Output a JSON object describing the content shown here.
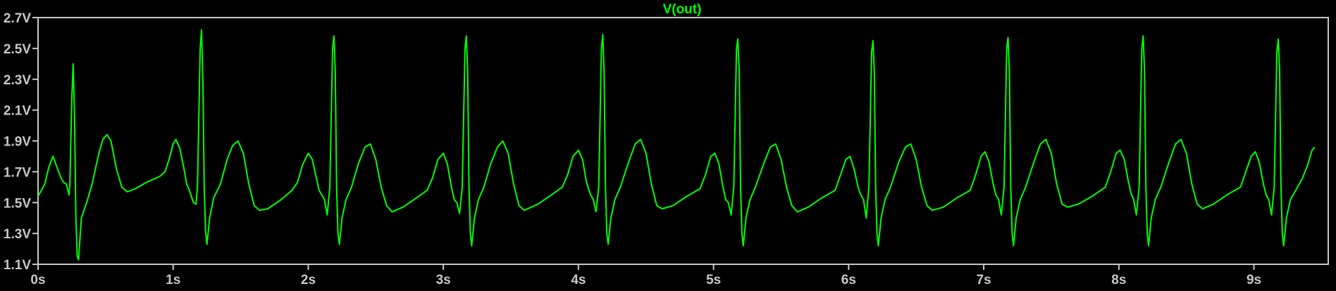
{
  "chart_data": {
    "type": "line",
    "title": "",
    "xlabel": "",
    "ylabel": "",
    "background": "#000000",
    "axis_color": "#c8c8c8",
    "grid": false,
    "xlim": [
      0,
      9.55
    ],
    "ylim": [
      1.1,
      2.7
    ],
    "x_ticks": [
      {
        "value": 0,
        "label": "0s"
      },
      {
        "value": 1,
        "label": "1s"
      },
      {
        "value": 2,
        "label": "2s"
      },
      {
        "value": 3,
        "label": "3s"
      },
      {
        "value": 4,
        "label": "4s"
      },
      {
        "value": 5,
        "label": "5s"
      },
      {
        "value": 6,
        "label": "6s"
      },
      {
        "value": 7,
        "label": "7s"
      },
      {
        "value": 8,
        "label": "8s"
      },
      {
        "value": 9,
        "label": "9s"
      }
    ],
    "y_ticks": [
      {
        "value": 1.1,
        "label": "1.1V"
      },
      {
        "value": 1.3,
        "label": "1.3V"
      },
      {
        "value": 1.5,
        "label": "1.5V"
      },
      {
        "value": 1.7,
        "label": "1.7V"
      },
      {
        "value": 1.9,
        "label": "1.9V"
      },
      {
        "value": 2.1,
        "label": "2.1V"
      },
      {
        "value": 2.3,
        "label": "2.3V"
      },
      {
        "value": 2.5,
        "label": "2.5V"
      },
      {
        "value": 2.7,
        "label": "2.7V"
      }
    ],
    "series": [
      {
        "name": "V(out)",
        "color": "#00ff00",
        "points": [
          [
            0.0,
            1.54
          ],
          [
            0.05,
            1.62
          ],
          [
            0.08,
            1.73
          ],
          [
            0.11,
            1.8
          ],
          [
            0.14,
            1.73
          ],
          [
            0.17,
            1.66
          ],
          [
            0.19,
            1.63
          ],
          [
            0.21,
            1.62
          ],
          [
            0.22,
            1.58
          ],
          [
            0.23,
            1.55
          ],
          [
            0.235,
            1.62
          ],
          [
            0.25,
            2.17
          ],
          [
            0.26,
            2.4
          ],
          [
            0.27,
            2.05
          ],
          [
            0.28,
            1.4
          ],
          [
            0.29,
            1.15
          ],
          [
            0.3,
            1.13
          ],
          [
            0.32,
            1.4
          ],
          [
            0.36,
            1.5
          ],
          [
            0.4,
            1.62
          ],
          [
            0.45,
            1.82
          ],
          [
            0.48,
            1.91
          ],
          [
            0.51,
            1.94
          ],
          [
            0.54,
            1.9
          ],
          [
            0.58,
            1.72
          ],
          [
            0.62,
            1.6
          ],
          [
            0.66,
            1.57
          ],
          [
            0.72,
            1.59
          ],
          [
            0.8,
            1.63
          ],
          [
            0.9,
            1.67
          ],
          [
            0.94,
            1.7
          ],
          [
            0.97,
            1.78
          ],
          [
            1.0,
            1.88
          ],
          [
            1.02,
            1.91
          ],
          [
            1.05,
            1.85
          ],
          [
            1.08,
            1.72
          ],
          [
            1.1,
            1.62
          ],
          [
            1.12,
            1.58
          ],
          [
            1.15,
            1.5
          ],
          [
            1.17,
            1.49
          ],
          [
            1.18,
            1.6
          ],
          [
            1.2,
            2.5
          ],
          [
            1.21,
            2.62
          ],
          [
            1.22,
            2.3
          ],
          [
            1.23,
            1.6
          ],
          [
            1.24,
            1.32
          ],
          [
            1.25,
            1.23
          ],
          [
            1.27,
            1.4
          ],
          [
            1.3,
            1.53
          ],
          [
            1.35,
            1.62
          ],
          [
            1.4,
            1.78
          ],
          [
            1.44,
            1.87
          ],
          [
            1.48,
            1.9
          ],
          [
            1.52,
            1.82
          ],
          [
            1.56,
            1.62
          ],
          [
            1.6,
            1.48
          ],
          [
            1.64,
            1.45
          ],
          [
            1.7,
            1.46
          ],
          [
            1.8,
            1.52
          ],
          [
            1.88,
            1.58
          ],
          [
            1.92,
            1.63
          ],
          [
            1.96,
            1.75
          ],
          [
            2.0,
            1.82
          ],
          [
            2.03,
            1.78
          ],
          [
            2.06,
            1.66
          ],
          [
            2.08,
            1.58
          ],
          [
            2.1,
            1.55
          ],
          [
            2.12,
            1.52
          ],
          [
            2.14,
            1.42
          ],
          [
            2.16,
            1.6
          ],
          [
            2.18,
            2.5
          ],
          [
            2.19,
            2.58
          ],
          [
            2.2,
            2.35
          ],
          [
            2.21,
            1.6
          ],
          [
            2.22,
            1.3
          ],
          [
            2.23,
            1.23
          ],
          [
            2.25,
            1.4
          ],
          [
            2.28,
            1.52
          ],
          [
            2.32,
            1.6
          ],
          [
            2.37,
            1.75
          ],
          [
            2.42,
            1.86
          ],
          [
            2.46,
            1.88
          ],
          [
            2.5,
            1.78
          ],
          [
            2.54,
            1.6
          ],
          [
            2.58,
            1.48
          ],
          [
            2.62,
            1.44
          ],
          [
            2.7,
            1.47
          ],
          [
            2.8,
            1.53
          ],
          [
            2.88,
            1.58
          ],
          [
            2.92,
            1.66
          ],
          [
            2.96,
            1.78
          ],
          [
            3.0,
            1.82
          ],
          [
            3.03,
            1.75
          ],
          [
            3.06,
            1.6
          ],
          [
            3.08,
            1.52
          ],
          [
            3.1,
            1.5
          ],
          [
            3.12,
            1.43
          ],
          [
            3.14,
            1.6
          ],
          [
            3.16,
            2.5
          ],
          [
            3.17,
            2.58
          ],
          [
            3.18,
            2.35
          ],
          [
            3.19,
            1.6
          ],
          [
            3.2,
            1.3
          ],
          [
            3.21,
            1.22
          ],
          [
            3.23,
            1.4
          ],
          [
            3.26,
            1.52
          ],
          [
            3.3,
            1.6
          ],
          [
            3.35,
            1.75
          ],
          [
            3.4,
            1.86
          ],
          [
            3.44,
            1.9
          ],
          [
            3.48,
            1.82
          ],
          [
            3.52,
            1.62
          ],
          [
            3.56,
            1.48
          ],
          [
            3.6,
            1.45
          ],
          [
            3.7,
            1.49
          ],
          [
            3.8,
            1.55
          ],
          [
            3.88,
            1.6
          ],
          [
            3.92,
            1.68
          ],
          [
            3.96,
            1.8
          ],
          [
            4.0,
            1.84
          ],
          [
            4.03,
            1.78
          ],
          [
            4.06,
            1.63
          ],
          [
            4.09,
            1.55
          ],
          [
            4.11,
            1.52
          ],
          [
            4.13,
            1.44
          ],
          [
            4.15,
            1.6
          ],
          [
            4.17,
            2.5
          ],
          [
            4.18,
            2.59
          ],
          [
            4.19,
            2.35
          ],
          [
            4.2,
            1.6
          ],
          [
            4.21,
            1.3
          ],
          [
            4.22,
            1.23
          ],
          [
            4.24,
            1.4
          ],
          [
            4.27,
            1.52
          ],
          [
            4.31,
            1.6
          ],
          [
            4.37,
            1.76
          ],
          [
            4.42,
            1.88
          ],
          [
            4.46,
            1.91
          ],
          [
            4.5,
            1.82
          ],
          [
            4.54,
            1.62
          ],
          [
            4.58,
            1.48
          ],
          [
            4.62,
            1.46
          ],
          [
            4.7,
            1.48
          ],
          [
            4.8,
            1.54
          ],
          [
            4.9,
            1.59
          ],
          [
            4.94,
            1.68
          ],
          [
            4.98,
            1.8
          ],
          [
            5.01,
            1.82
          ],
          [
            5.04,
            1.75
          ],
          [
            5.07,
            1.6
          ],
          [
            5.09,
            1.52
          ],
          [
            5.11,
            1.5
          ],
          [
            5.13,
            1.42
          ],
          [
            5.15,
            1.6
          ],
          [
            5.17,
            2.5
          ],
          [
            5.18,
            2.56
          ],
          [
            5.19,
            2.35
          ],
          [
            5.2,
            1.6
          ],
          [
            5.21,
            1.3
          ],
          [
            5.22,
            1.22
          ],
          [
            5.24,
            1.4
          ],
          [
            5.27,
            1.52
          ],
          [
            5.31,
            1.6
          ],
          [
            5.37,
            1.75
          ],
          [
            5.42,
            1.86
          ],
          [
            5.46,
            1.88
          ],
          [
            5.5,
            1.78
          ],
          [
            5.54,
            1.6
          ],
          [
            5.58,
            1.48
          ],
          [
            5.62,
            1.44
          ],
          [
            5.7,
            1.47
          ],
          [
            5.8,
            1.53
          ],
          [
            5.9,
            1.58
          ],
          [
            5.94,
            1.68
          ],
          [
            5.98,
            1.78
          ],
          [
            6.01,
            1.8
          ],
          [
            6.04,
            1.72
          ],
          [
            6.07,
            1.6
          ],
          [
            6.09,
            1.55
          ],
          [
            6.11,
            1.52
          ],
          [
            6.13,
            1.4
          ],
          [
            6.15,
            1.6
          ],
          [
            6.17,
            2.48
          ],
          [
            6.18,
            2.55
          ],
          [
            6.19,
            2.35
          ],
          [
            6.2,
            1.6
          ],
          [
            6.21,
            1.3
          ],
          [
            6.22,
            1.22
          ],
          [
            6.24,
            1.4
          ],
          [
            6.27,
            1.52
          ],
          [
            6.31,
            1.6
          ],
          [
            6.37,
            1.76
          ],
          [
            6.42,
            1.86
          ],
          [
            6.46,
            1.88
          ],
          [
            6.5,
            1.78
          ],
          [
            6.54,
            1.6
          ],
          [
            6.58,
            1.48
          ],
          [
            6.62,
            1.45
          ],
          [
            6.7,
            1.47
          ],
          [
            6.8,
            1.53
          ],
          [
            6.9,
            1.58
          ],
          [
            6.94,
            1.68
          ],
          [
            6.98,
            1.8
          ],
          [
            7.01,
            1.83
          ],
          [
            7.04,
            1.76
          ],
          [
            7.07,
            1.62
          ],
          [
            7.09,
            1.55
          ],
          [
            7.11,
            1.52
          ],
          [
            7.13,
            1.42
          ],
          [
            7.15,
            1.6
          ],
          [
            7.17,
            2.5
          ],
          [
            7.18,
            2.57
          ],
          [
            7.19,
            2.35
          ],
          [
            7.2,
            1.6
          ],
          [
            7.21,
            1.3
          ],
          [
            7.22,
            1.22
          ],
          [
            7.24,
            1.4
          ],
          [
            7.27,
            1.52
          ],
          [
            7.31,
            1.6
          ],
          [
            7.37,
            1.76
          ],
          [
            7.42,
            1.88
          ],
          [
            7.46,
            1.91
          ],
          [
            7.5,
            1.82
          ],
          [
            7.54,
            1.62
          ],
          [
            7.58,
            1.49
          ],
          [
            7.62,
            1.47
          ],
          [
            7.7,
            1.49
          ],
          [
            7.8,
            1.54
          ],
          [
            7.9,
            1.6
          ],
          [
            7.94,
            1.7
          ],
          [
            7.98,
            1.82
          ],
          [
            8.01,
            1.84
          ],
          [
            8.04,
            1.78
          ],
          [
            8.07,
            1.64
          ],
          [
            8.09,
            1.56
          ],
          [
            8.11,
            1.52
          ],
          [
            8.13,
            1.42
          ],
          [
            8.15,
            1.6
          ],
          [
            8.17,
            2.5
          ],
          [
            8.18,
            2.58
          ],
          [
            8.19,
            2.35
          ],
          [
            8.2,
            1.6
          ],
          [
            8.21,
            1.3
          ],
          [
            8.22,
            1.22
          ],
          [
            8.24,
            1.4
          ],
          [
            8.27,
            1.52
          ],
          [
            8.31,
            1.6
          ],
          [
            8.37,
            1.76
          ],
          [
            8.42,
            1.88
          ],
          [
            8.46,
            1.91
          ],
          [
            8.5,
            1.82
          ],
          [
            8.54,
            1.62
          ],
          [
            8.58,
            1.49
          ],
          [
            8.62,
            1.46
          ],
          [
            8.7,
            1.49
          ],
          [
            8.8,
            1.55
          ],
          [
            8.9,
            1.6
          ],
          [
            8.94,
            1.7
          ],
          [
            8.98,
            1.8
          ],
          [
            9.01,
            1.83
          ],
          [
            9.04,
            1.76
          ],
          [
            9.07,
            1.62
          ],
          [
            9.09,
            1.55
          ],
          [
            9.11,
            1.52
          ],
          [
            9.13,
            1.42
          ],
          [
            9.15,
            1.6
          ],
          [
            9.17,
            2.48
          ],
          [
            9.18,
            2.56
          ],
          [
            9.19,
            2.35
          ],
          [
            9.2,
            1.6
          ],
          [
            9.21,
            1.3
          ],
          [
            9.22,
            1.22
          ],
          [
            9.24,
            1.4
          ],
          [
            9.27,
            1.52
          ],
          [
            9.31,
            1.58
          ],
          [
            9.36,
            1.66
          ],
          [
            9.4,
            1.75
          ],
          [
            9.43,
            1.84
          ],
          [
            9.45,
            1.86
          ]
        ]
      }
    ]
  }
}
